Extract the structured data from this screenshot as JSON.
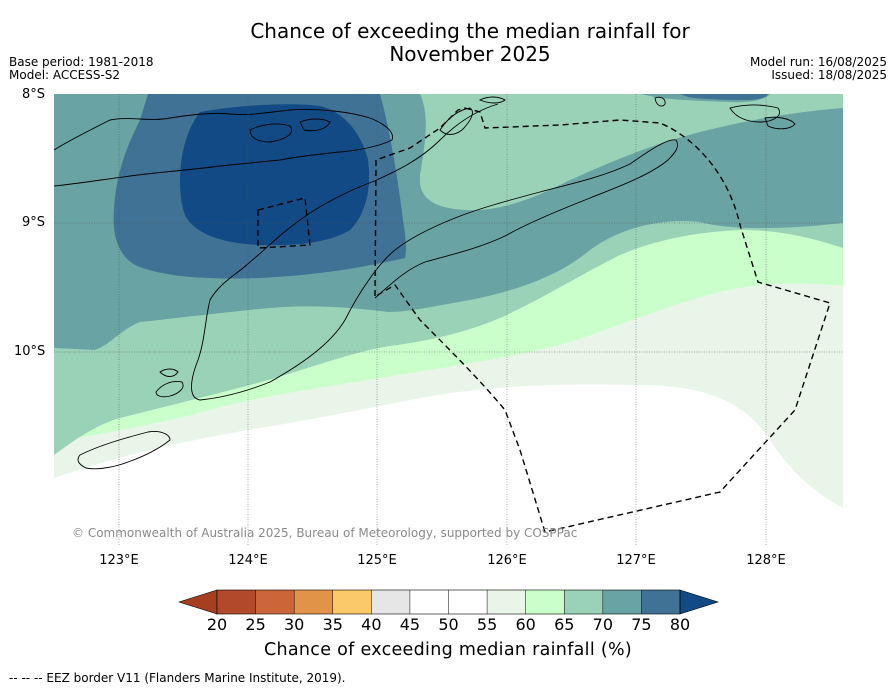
{
  "title": {
    "line1": "Chance of exceeding the median rainfall for",
    "line2": "November 2025"
  },
  "meta_left": {
    "base_period": "Base period: 1981-2018",
    "model": "Model: ACCESS-S2"
  },
  "meta_right": {
    "model_run": "Model run: 16/08/2025",
    "issued": "Issued: 18/08/2025"
  },
  "map": {
    "lat_labels": [
      "8°S",
      "9°S",
      "10°S"
    ],
    "lon_labels": [
      "123°E",
      "124°E",
      "125°E",
      "126°E",
      "127°E",
      "128°E"
    ],
    "copyright": "© Commonwealth of Australia 2025, Bureau of Meteorology, supported by COSPPac",
    "grid": true
  },
  "colorbar": {
    "title": "Chance of exceeding median rainfall (%)",
    "ticks": [
      "20",
      "25",
      "30",
      "35",
      "40",
      "45",
      "50",
      "55",
      "60",
      "65",
      "70",
      "75",
      "80"
    ],
    "colors": [
      "#a63f1f",
      "#b2492a",
      "#cc6636",
      "#e2934a",
      "#fcc96a",
      "#e6e6e6",
      "#ffffff",
      "#ffffff",
      "#eaf5ea",
      "#caffcb",
      "#9ad2b8",
      "#6aa3a3",
      "#3f7295",
      "#124a85"
    ],
    "extend": "both"
  },
  "footnote": "--  --  -- EEZ border V11 (Flanders Marine Institute, 2019)."
}
